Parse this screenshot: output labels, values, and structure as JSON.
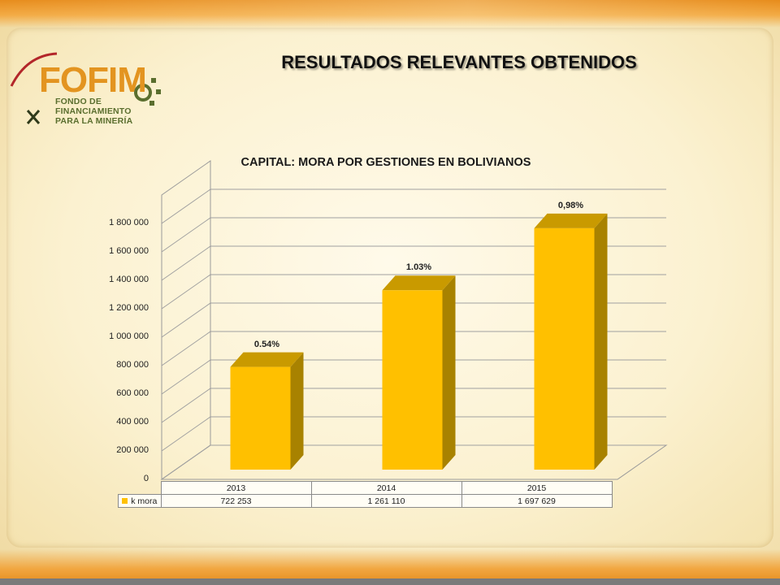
{
  "slide": {
    "title": "RESULTADOS RELEVANTES OBTENIDOS"
  },
  "logo": {
    "name": "FOFIM",
    "line1": "FONDO DE",
    "line2": "FINANCIAMIENTO",
    "line3": "PARA LA MINERÍA"
  },
  "chart_data": {
    "type": "bar",
    "title": "CAPITAL: MORA POR GESTIONES EN BOLIVIANOS",
    "categories": [
      "2013",
      "2014",
      "2015"
    ],
    "series": [
      {
        "name": "k mora",
        "values": [
          722253,
          1261110,
          1697629
        ],
        "display_values": [
          "722 253",
          "1 261 110",
          "1 697 629"
        ],
        "color": "#ffc000"
      }
    ],
    "bar_labels": [
      "0.54%",
      "1.03%",
      "0,98%"
    ],
    "yticks": [
      "0",
      "200 000",
      "400 000",
      "600 000",
      "800 000",
      "1 000 000",
      "1 200 000",
      "1 400 000",
      "1 600 000",
      "1 800 000"
    ],
    "ylim": [
      0,
      2000000
    ],
    "grid": true,
    "legend": "data-table",
    "style": "3d"
  }
}
